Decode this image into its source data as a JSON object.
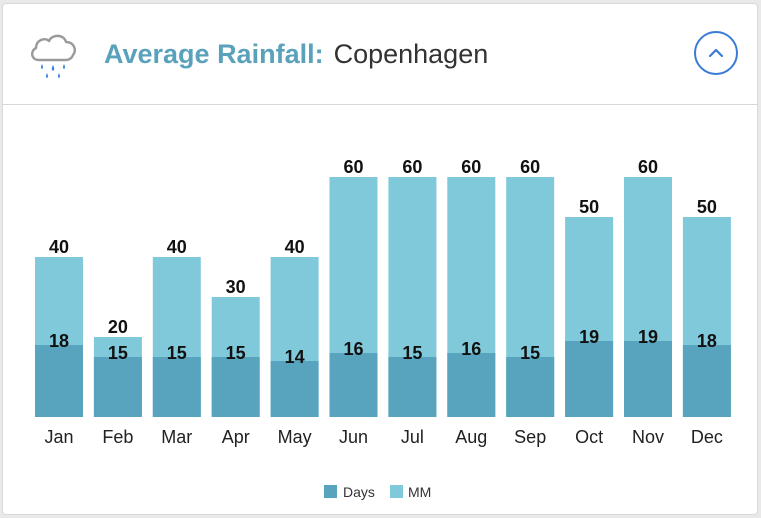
{
  "header": {
    "title_label": "Average Rainfall:",
    "city": "Copenhagen",
    "icon": "rain-cloud-icon",
    "collapse_icon": "chevron-up-icon"
  },
  "colors": {
    "accent": "#5aa2bc",
    "days": "#58a3bd",
    "mm": "#7fc9da",
    "button": "#3a7bd5"
  },
  "chart_data": {
    "type": "bar",
    "title": "Average Rainfall: Copenhagen",
    "categories": [
      "Jan",
      "Feb",
      "Mar",
      "Apr",
      "May",
      "Jun",
      "Jul",
      "Aug",
      "Sep",
      "Oct",
      "Nov",
      "Dec"
    ],
    "series": [
      {
        "name": "Days",
        "values": [
          18,
          15,
          15,
          15,
          14,
          16,
          15,
          16,
          15,
          19,
          19,
          18
        ]
      },
      {
        "name": "MM",
        "values": [
          40,
          20,
          40,
          30,
          40,
          60,
          60,
          60,
          60,
          50,
          60,
          50
        ]
      }
    ],
    "legend": [
      "Days",
      "MM"
    ],
    "legend_position": "bottom-center",
    "grid": false
  }
}
